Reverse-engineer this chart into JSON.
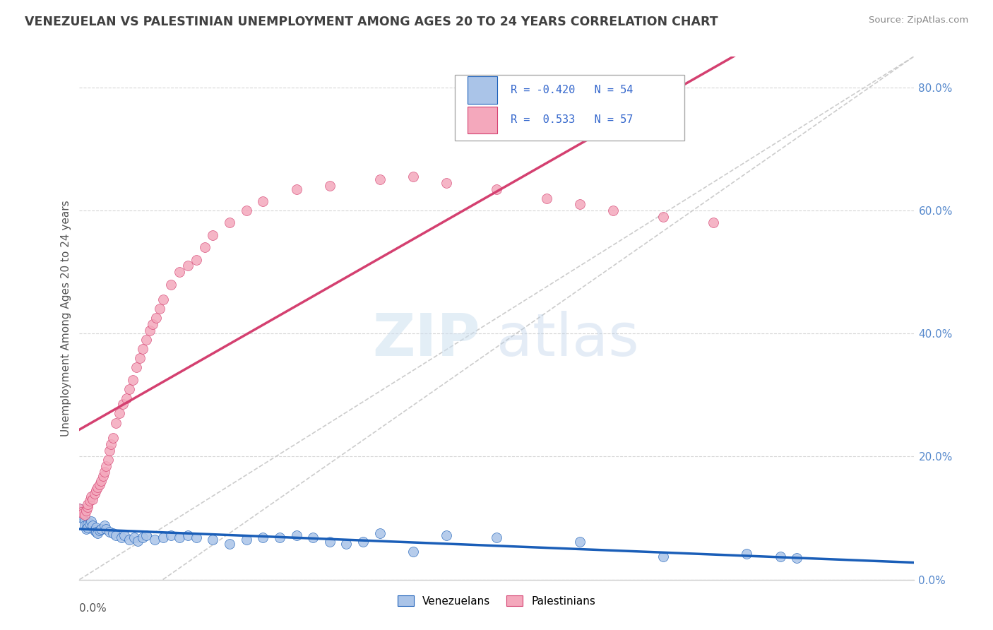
{
  "title": "VENEZUELAN VS PALESTINIAN UNEMPLOYMENT AMONG AGES 20 TO 24 YEARS CORRELATION CHART",
  "source": "Source: ZipAtlas.com",
  "ylabel_text": "Unemployment Among Ages 20 to 24 years",
  "venezuelan_color": "#aac4e8",
  "palestinian_color": "#f4a8bc",
  "venezuelan_line_color": "#1a5eb8",
  "palestinian_line_color": "#d44070",
  "title_color": "#404040",
  "source_color": "#888888",
  "background_color": "#ffffff",
  "grid_color": "#cccccc",
  "legend_R1": "R = -0.420",
  "legend_N1": "N = 54",
  "legend_R2": "R =  0.533",
  "legend_N2": "N = 57",
  "legend_color": "#3366cc",
  "xmin": 0.0,
  "xmax": 0.5,
  "ymin": 0.0,
  "ymax": 0.85,
  "venezuelan_x": [
    0.0,
    0.001,
    0.002,
    0.003,
    0.003,
    0.004,
    0.005,
    0.005,
    0.006,
    0.007,
    0.008,
    0.009,
    0.01,
    0.01,
    0.011,
    0.012,
    0.013,
    0.015,
    0.016,
    0.018,
    0.02,
    0.022,
    0.025,
    0.027,
    0.03,
    0.033,
    0.035,
    0.038,
    0.04,
    0.045,
    0.05,
    0.055,
    0.06,
    0.065,
    0.07,
    0.08,
    0.09,
    0.1,
    0.11,
    0.12,
    0.13,
    0.14,
    0.15,
    0.16,
    0.17,
    0.18,
    0.2,
    0.22,
    0.25,
    0.3,
    0.35,
    0.4,
    0.42,
    0.43
  ],
  "venezuelan_y": [
    0.115,
    0.105,
    0.1,
    0.095,
    0.088,
    0.082,
    0.09,
    0.085,
    0.092,
    0.095,
    0.088,
    0.08,
    0.085,
    0.078,
    0.075,
    0.08,
    0.082,
    0.088,
    0.082,
    0.078,
    0.075,
    0.072,
    0.068,
    0.072,
    0.065,
    0.068,
    0.063,
    0.068,
    0.072,
    0.065,
    0.068,
    0.072,
    0.068,
    0.072,
    0.068,
    0.065,
    0.058,
    0.065,
    0.068,
    0.068,
    0.072,
    0.068,
    0.062,
    0.058,
    0.062,
    0.075,
    0.045,
    0.072,
    0.068,
    0.062,
    0.038,
    0.042,
    0.038,
    0.035
  ],
  "palestinian_x": [
    0.0,
    0.001,
    0.002,
    0.003,
    0.004,
    0.005,
    0.005,
    0.006,
    0.007,
    0.008,
    0.009,
    0.01,
    0.011,
    0.012,
    0.013,
    0.014,
    0.015,
    0.016,
    0.017,
    0.018,
    0.019,
    0.02,
    0.022,
    0.024,
    0.026,
    0.028,
    0.03,
    0.032,
    0.034,
    0.036,
    0.038,
    0.04,
    0.042,
    0.044,
    0.046,
    0.048,
    0.05,
    0.055,
    0.06,
    0.065,
    0.07,
    0.075,
    0.08,
    0.09,
    0.1,
    0.11,
    0.13,
    0.15,
    0.18,
    0.2,
    0.22,
    0.25,
    0.28,
    0.3,
    0.32,
    0.35,
    0.38
  ],
  "palestinian_y": [
    0.115,
    0.11,
    0.108,
    0.105,
    0.112,
    0.118,
    0.122,
    0.128,
    0.135,
    0.13,
    0.14,
    0.145,
    0.15,
    0.155,
    0.16,
    0.168,
    0.175,
    0.185,
    0.195,
    0.21,
    0.22,
    0.23,
    0.255,
    0.27,
    0.285,
    0.295,
    0.31,
    0.325,
    0.345,
    0.36,
    0.375,
    0.39,
    0.405,
    0.415,
    0.425,
    0.44,
    0.455,
    0.48,
    0.5,
    0.51,
    0.52,
    0.54,
    0.56,
    0.58,
    0.6,
    0.615,
    0.635,
    0.64,
    0.65,
    0.655,
    0.645,
    0.635,
    0.62,
    0.61,
    0.6,
    0.59,
    0.58
  ],
  "yticks": [
    0.0,
    0.2,
    0.4,
    0.6,
    0.8
  ],
  "ytick_labels": [
    "0.0%",
    "20.0%",
    "40.0%",
    "60.0%",
    "80.0%"
  ]
}
